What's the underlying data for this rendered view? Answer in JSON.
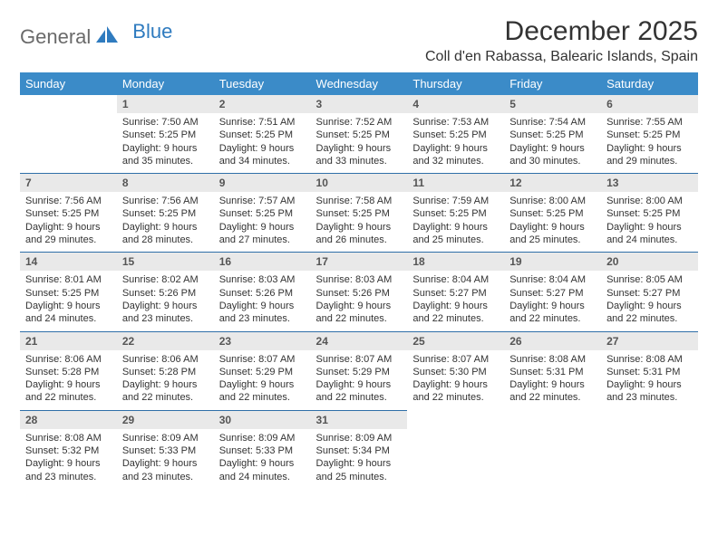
{
  "logo": {
    "general": "General",
    "blue": "Blue"
  },
  "title": "December 2025",
  "subtitle": "Coll d'en Rabassa, Balearic Islands, Spain",
  "colors": {
    "header_bg": "#3b8bc8",
    "header_text": "#ffffff",
    "daynum_bg": "#e9e9e9",
    "rule": "#2f6fa8",
    "logo_gray": "#6a6a6a",
    "logo_blue": "#2f7bbf"
  },
  "day_headers": [
    "Sunday",
    "Monday",
    "Tuesday",
    "Wednesday",
    "Thursday",
    "Friday",
    "Saturday"
  ],
  "weeks": [
    [
      null,
      {
        "n": "1",
        "sr": "Sunrise: 7:50 AM",
        "ss": "Sunset: 5:25 PM",
        "d1": "Daylight: 9 hours",
        "d2": "and 35 minutes."
      },
      {
        "n": "2",
        "sr": "Sunrise: 7:51 AM",
        "ss": "Sunset: 5:25 PM",
        "d1": "Daylight: 9 hours",
        "d2": "and 34 minutes."
      },
      {
        "n": "3",
        "sr": "Sunrise: 7:52 AM",
        "ss": "Sunset: 5:25 PM",
        "d1": "Daylight: 9 hours",
        "d2": "and 33 minutes."
      },
      {
        "n": "4",
        "sr": "Sunrise: 7:53 AM",
        "ss": "Sunset: 5:25 PM",
        "d1": "Daylight: 9 hours",
        "d2": "and 32 minutes."
      },
      {
        "n": "5",
        "sr": "Sunrise: 7:54 AM",
        "ss": "Sunset: 5:25 PM",
        "d1": "Daylight: 9 hours",
        "d2": "and 30 minutes."
      },
      {
        "n": "6",
        "sr": "Sunrise: 7:55 AM",
        "ss": "Sunset: 5:25 PM",
        "d1": "Daylight: 9 hours",
        "d2": "and 29 minutes."
      }
    ],
    [
      {
        "n": "7",
        "sr": "Sunrise: 7:56 AM",
        "ss": "Sunset: 5:25 PM",
        "d1": "Daylight: 9 hours",
        "d2": "and 29 minutes."
      },
      {
        "n": "8",
        "sr": "Sunrise: 7:56 AM",
        "ss": "Sunset: 5:25 PM",
        "d1": "Daylight: 9 hours",
        "d2": "and 28 minutes."
      },
      {
        "n": "9",
        "sr": "Sunrise: 7:57 AM",
        "ss": "Sunset: 5:25 PM",
        "d1": "Daylight: 9 hours",
        "d2": "and 27 minutes."
      },
      {
        "n": "10",
        "sr": "Sunrise: 7:58 AM",
        "ss": "Sunset: 5:25 PM",
        "d1": "Daylight: 9 hours",
        "d2": "and 26 minutes."
      },
      {
        "n": "11",
        "sr": "Sunrise: 7:59 AM",
        "ss": "Sunset: 5:25 PM",
        "d1": "Daylight: 9 hours",
        "d2": "and 25 minutes."
      },
      {
        "n": "12",
        "sr": "Sunrise: 8:00 AM",
        "ss": "Sunset: 5:25 PM",
        "d1": "Daylight: 9 hours",
        "d2": "and 25 minutes."
      },
      {
        "n": "13",
        "sr": "Sunrise: 8:00 AM",
        "ss": "Sunset: 5:25 PM",
        "d1": "Daylight: 9 hours",
        "d2": "and 24 minutes."
      }
    ],
    [
      {
        "n": "14",
        "sr": "Sunrise: 8:01 AM",
        "ss": "Sunset: 5:25 PM",
        "d1": "Daylight: 9 hours",
        "d2": "and 24 minutes."
      },
      {
        "n": "15",
        "sr": "Sunrise: 8:02 AM",
        "ss": "Sunset: 5:26 PM",
        "d1": "Daylight: 9 hours",
        "d2": "and 23 minutes."
      },
      {
        "n": "16",
        "sr": "Sunrise: 8:03 AM",
        "ss": "Sunset: 5:26 PM",
        "d1": "Daylight: 9 hours",
        "d2": "and 23 minutes."
      },
      {
        "n": "17",
        "sr": "Sunrise: 8:03 AM",
        "ss": "Sunset: 5:26 PM",
        "d1": "Daylight: 9 hours",
        "d2": "and 22 minutes."
      },
      {
        "n": "18",
        "sr": "Sunrise: 8:04 AM",
        "ss": "Sunset: 5:27 PM",
        "d1": "Daylight: 9 hours",
        "d2": "and 22 minutes."
      },
      {
        "n": "19",
        "sr": "Sunrise: 8:04 AM",
        "ss": "Sunset: 5:27 PM",
        "d1": "Daylight: 9 hours",
        "d2": "and 22 minutes."
      },
      {
        "n": "20",
        "sr": "Sunrise: 8:05 AM",
        "ss": "Sunset: 5:27 PM",
        "d1": "Daylight: 9 hours",
        "d2": "and 22 minutes."
      }
    ],
    [
      {
        "n": "21",
        "sr": "Sunrise: 8:06 AM",
        "ss": "Sunset: 5:28 PM",
        "d1": "Daylight: 9 hours",
        "d2": "and 22 minutes."
      },
      {
        "n": "22",
        "sr": "Sunrise: 8:06 AM",
        "ss": "Sunset: 5:28 PM",
        "d1": "Daylight: 9 hours",
        "d2": "and 22 minutes."
      },
      {
        "n": "23",
        "sr": "Sunrise: 8:07 AM",
        "ss": "Sunset: 5:29 PM",
        "d1": "Daylight: 9 hours",
        "d2": "and 22 minutes."
      },
      {
        "n": "24",
        "sr": "Sunrise: 8:07 AM",
        "ss": "Sunset: 5:29 PM",
        "d1": "Daylight: 9 hours",
        "d2": "and 22 minutes."
      },
      {
        "n": "25",
        "sr": "Sunrise: 8:07 AM",
        "ss": "Sunset: 5:30 PM",
        "d1": "Daylight: 9 hours",
        "d2": "and 22 minutes."
      },
      {
        "n": "26",
        "sr": "Sunrise: 8:08 AM",
        "ss": "Sunset: 5:31 PM",
        "d1": "Daylight: 9 hours",
        "d2": "and 22 minutes."
      },
      {
        "n": "27",
        "sr": "Sunrise: 8:08 AM",
        "ss": "Sunset: 5:31 PM",
        "d1": "Daylight: 9 hours",
        "d2": "and 23 minutes."
      }
    ],
    [
      {
        "n": "28",
        "sr": "Sunrise: 8:08 AM",
        "ss": "Sunset: 5:32 PM",
        "d1": "Daylight: 9 hours",
        "d2": "and 23 minutes."
      },
      {
        "n": "29",
        "sr": "Sunrise: 8:09 AM",
        "ss": "Sunset: 5:33 PM",
        "d1": "Daylight: 9 hours",
        "d2": "and 23 minutes."
      },
      {
        "n": "30",
        "sr": "Sunrise: 8:09 AM",
        "ss": "Sunset: 5:33 PM",
        "d1": "Daylight: 9 hours",
        "d2": "and 24 minutes."
      },
      {
        "n": "31",
        "sr": "Sunrise: 8:09 AM",
        "ss": "Sunset: 5:34 PM",
        "d1": "Daylight: 9 hours",
        "d2": "and 25 minutes."
      },
      null,
      null,
      null
    ]
  ]
}
